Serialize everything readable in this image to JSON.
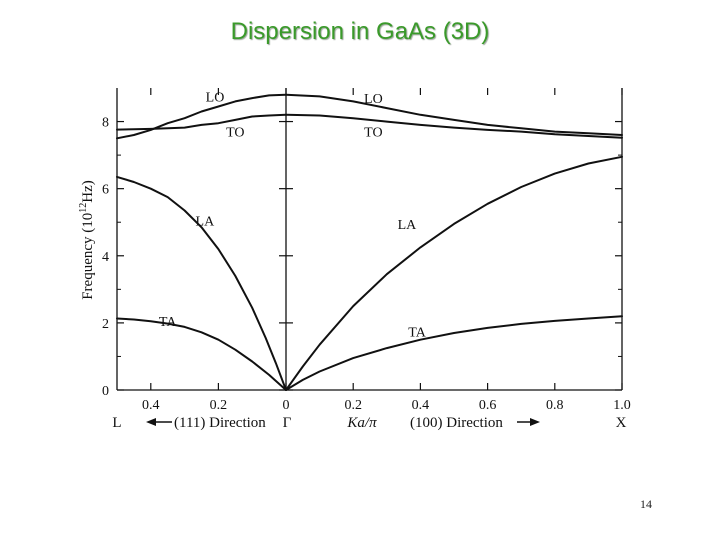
{
  "slide": {
    "title": "Dispersion in GaAs (3D)",
    "page_number": "14"
  },
  "chart_data": {
    "type": "line",
    "title": "Dispersion in GaAs (3D)",
    "ylabel": "Frequency (10^12 Hz)",
    "ylabel_parts": {
      "main": "Frequency  (10",
      "exp": "12",
      "unit": "Hz)"
    },
    "xlabel": "Ka/π",
    "ylim": [
      0,
      9
    ],
    "y_ticks": [
      0,
      2,
      4,
      6,
      8
    ],
    "xlim_111": [
      0,
      0.5
    ],
    "xlim_100": [
      0,
      1.0
    ],
    "x_ticks_111": [
      {
        "v": 0.4,
        "label": "0.4"
      },
      {
        "v": 0.2,
        "label": "0.2"
      },
      {
        "v": 0.0,
        "label": "0"
      }
    ],
    "x_ticks_100": [
      {
        "v": 0.2,
        "label": "0.2"
      },
      {
        "v": 0.4,
        "label": "0.4"
      },
      {
        "v": 0.6,
        "label": "0.6"
      },
      {
        "v": 0.8,
        "label": "0.8"
      },
      {
        "v": 1.0,
        "label": "1.0"
      }
    ],
    "direction_labels": {
      "left_point": "L",
      "left_direction": "(111) Direction",
      "center_point": "Γ",
      "right_direction": "(100) Direction",
      "right_point": "X"
    },
    "series": [
      {
        "name": "LO",
        "direction": "111",
        "points": [
          [
            0,
            8.8
          ],
          [
            0.05,
            8.78
          ],
          [
            0.1,
            8.7
          ],
          [
            0.15,
            8.6
          ],
          [
            0.2,
            8.45
          ],
          [
            0.25,
            8.3
          ],
          [
            0.3,
            8.1
          ],
          [
            0.35,
            7.95
          ],
          [
            0.4,
            7.75
          ],
          [
            0.45,
            7.6
          ],
          [
            0.5,
            7.5
          ]
        ]
      },
      {
        "name": "TO",
        "direction": "111",
        "points": [
          [
            0,
            8.2
          ],
          [
            0.05,
            8.18
          ],
          [
            0.1,
            8.15
          ],
          [
            0.15,
            8.05
          ],
          [
            0.2,
            7.95
          ],
          [
            0.25,
            7.9
          ],
          [
            0.3,
            7.82
          ],
          [
            0.35,
            7.8
          ],
          [
            0.4,
            7.78
          ],
          [
            0.45,
            7.77
          ],
          [
            0.5,
            7.76
          ]
        ]
      },
      {
        "name": "LA",
        "direction": "111",
        "points": [
          [
            0,
            0
          ],
          [
            0.03,
            0.8
          ],
          [
            0.06,
            1.55
          ],
          [
            0.1,
            2.45
          ],
          [
            0.15,
            3.4
          ],
          [
            0.2,
            4.2
          ],
          [
            0.25,
            4.85
          ],
          [
            0.3,
            5.35
          ],
          [
            0.35,
            5.75
          ],
          [
            0.4,
            6.0
          ],
          [
            0.45,
            6.2
          ],
          [
            0.5,
            6.35
          ]
        ]
      },
      {
        "name": "TA",
        "direction": "111",
        "points": [
          [
            0,
            0
          ],
          [
            0.05,
            0.45
          ],
          [
            0.1,
            0.85
          ],
          [
            0.15,
            1.2
          ],
          [
            0.2,
            1.5
          ],
          [
            0.25,
            1.72
          ],
          [
            0.3,
            1.88
          ],
          [
            0.35,
            1.98
          ],
          [
            0.4,
            2.05
          ],
          [
            0.45,
            2.1
          ],
          [
            0.5,
            2.13
          ]
        ]
      },
      {
        "name": "LO",
        "direction": "100",
        "points": [
          [
            0,
            8.8
          ],
          [
            0.1,
            8.75
          ],
          [
            0.2,
            8.6
          ],
          [
            0.3,
            8.4
          ],
          [
            0.4,
            8.2
          ],
          [
            0.5,
            8.05
          ],
          [
            0.6,
            7.9
          ],
          [
            0.7,
            7.8
          ],
          [
            0.8,
            7.7
          ],
          [
            0.9,
            7.65
          ],
          [
            1.0,
            7.6
          ]
        ]
      },
      {
        "name": "TO",
        "direction": "100",
        "points": [
          [
            0,
            8.2
          ],
          [
            0.1,
            8.18
          ],
          [
            0.2,
            8.1
          ],
          [
            0.3,
            8.0
          ],
          [
            0.4,
            7.9
          ],
          [
            0.5,
            7.82
          ],
          [
            0.6,
            7.75
          ],
          [
            0.7,
            7.7
          ],
          [
            0.8,
            7.62
          ],
          [
            0.9,
            7.57
          ],
          [
            1.0,
            7.52
          ]
        ]
      },
      {
        "name": "LA",
        "direction": "100",
        "points": [
          [
            0,
            0
          ],
          [
            0.05,
            0.7
          ],
          [
            0.1,
            1.35
          ],
          [
            0.2,
            2.5
          ],
          [
            0.3,
            3.45
          ],
          [
            0.4,
            4.25
          ],
          [
            0.5,
            4.95
          ],
          [
            0.6,
            5.55
          ],
          [
            0.7,
            6.05
          ],
          [
            0.8,
            6.45
          ],
          [
            0.9,
            6.75
          ],
          [
            1.0,
            6.95
          ]
        ]
      },
      {
        "name": "TA",
        "direction": "100",
        "points": [
          [
            0,
            0
          ],
          [
            0.05,
            0.3
          ],
          [
            0.1,
            0.55
          ],
          [
            0.2,
            0.95
          ],
          [
            0.3,
            1.25
          ],
          [
            0.4,
            1.5
          ],
          [
            0.5,
            1.7
          ],
          [
            0.6,
            1.85
          ],
          [
            0.7,
            1.97
          ],
          [
            0.8,
            2.06
          ],
          [
            0.9,
            2.13
          ],
          [
            1.0,
            2.2
          ]
        ]
      }
    ],
    "branch_labels": [
      {
        "text": "LO",
        "direction": "111",
        "x": 0.21,
        "y": 8.6
      },
      {
        "text": "TO",
        "direction": "111",
        "x": 0.15,
        "y": 7.55
      },
      {
        "text": "LA",
        "direction": "111",
        "x": 0.24,
        "y": 4.9
      },
      {
        "text": "TA",
        "direction": "111",
        "x": 0.35,
        "y": 1.9
      },
      {
        "text": "LO",
        "direction": "100",
        "x": 0.26,
        "y": 8.55
      },
      {
        "text": "TO",
        "direction": "100",
        "x": 0.26,
        "y": 7.55
      },
      {
        "text": "LA",
        "direction": "100",
        "x": 0.36,
        "y": 4.8
      },
      {
        "text": "TA",
        "direction": "100",
        "x": 0.39,
        "y": 1.6
      }
    ]
  }
}
